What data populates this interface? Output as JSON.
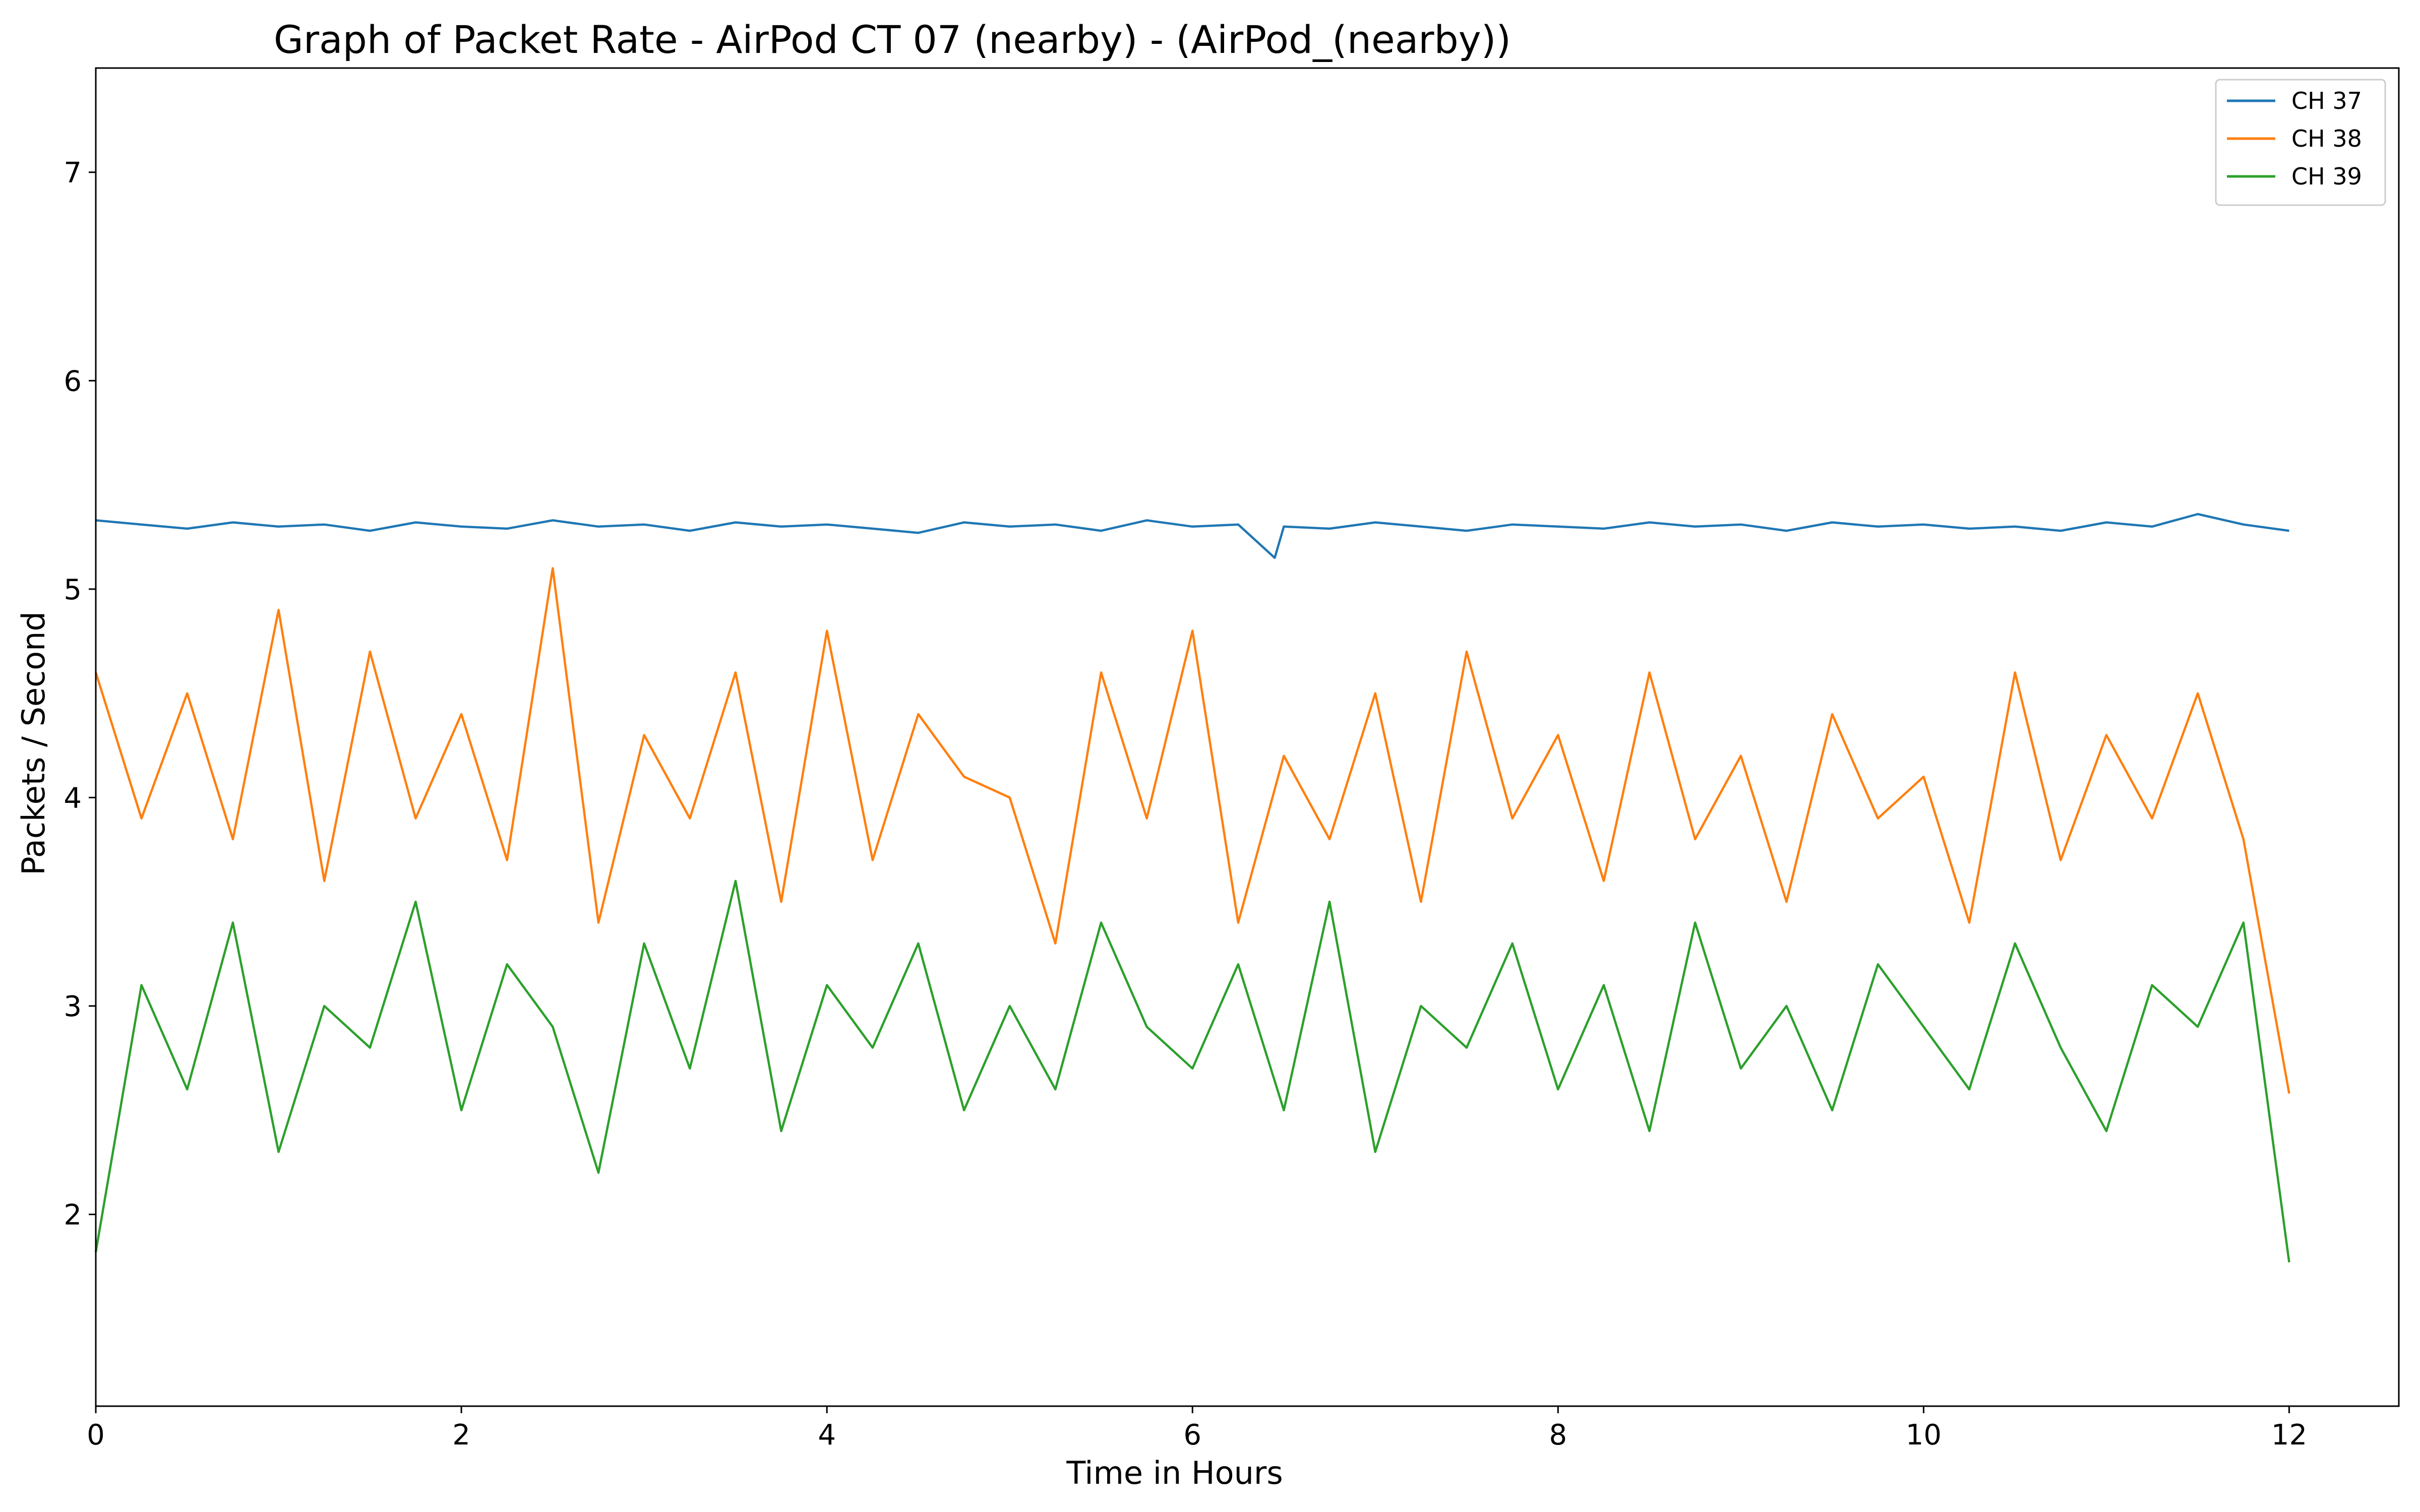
{
  "chart_data": {
    "type": "line",
    "title": "Graph of Packet Rate - AirPod CT 07 (nearby) - (AirPod_(nearby))",
    "xlabel": "Time in Hours",
    "ylabel": "Packets / Second",
    "xlim": [
      0,
      12.6
    ],
    "ylim": [
      1.08,
      7.5
    ],
    "xticks": [
      "0",
      "2",
      "4",
      "6",
      "8",
      "10",
      "12"
    ],
    "yticks": [
      "2",
      "3",
      "4",
      "5",
      "6",
      "7"
    ],
    "grid": false,
    "legend_position": "top-right",
    "series": [
      {
        "name": "CH 37",
        "color": "#1f77b4",
        "x": [
          0,
          0.25,
          0.5,
          0.75,
          1,
          1.25,
          1.5,
          1.75,
          2,
          2.25,
          2.5,
          2.75,
          3,
          3.25,
          3.5,
          3.75,
          4,
          4.25,
          4.5,
          4.75,
          5,
          5.25,
          5.5,
          5.75,
          6,
          6.25,
          6.45,
          6.5,
          6.75,
          7,
          7.25,
          7.5,
          7.75,
          8,
          8.25,
          8.5,
          8.75,
          9,
          9.25,
          9.5,
          9.75,
          10,
          10.25,
          10.5,
          10.75,
          11,
          11.25,
          11.5,
          11.75,
          12
        ],
        "y": [
          5.33,
          5.31,
          5.29,
          5.32,
          5.3,
          5.31,
          5.28,
          5.32,
          5.3,
          5.29,
          5.33,
          5.3,
          5.31,
          5.28,
          5.32,
          5.3,
          5.31,
          5.29,
          5.27,
          5.32,
          5.3,
          5.31,
          5.28,
          5.33,
          5.3,
          5.31,
          5.15,
          5.3,
          5.29,
          5.32,
          5.3,
          5.28,
          5.31,
          5.3,
          5.29,
          5.32,
          5.3,
          5.31,
          5.28,
          5.32,
          5.3,
          5.31,
          5.29,
          5.3,
          5.28,
          5.32,
          5.3,
          5.36,
          5.31,
          5.28
        ]
      },
      {
        "name": "CH 38",
        "color": "#ff7f0e",
        "x": [
          0,
          0.25,
          0.5,
          0.75,
          1,
          1.25,
          1.5,
          1.75,
          2,
          2.25,
          2.5,
          2.75,
          3,
          3.25,
          3.5,
          3.75,
          4,
          4.25,
          4.5,
          4.75,
          5,
          5.25,
          5.5,
          5.75,
          6,
          6.25,
          6.5,
          6.75,
          7,
          7.25,
          7.5,
          7.75,
          8,
          8.25,
          8.5,
          8.75,
          9,
          9.25,
          9.5,
          9.75,
          10,
          10.25,
          10.5,
          10.75,
          11,
          11.25,
          11.5,
          11.75,
          12
        ],
        "y": [
          4.6,
          3.9,
          4.5,
          3.8,
          4.9,
          3.6,
          4.7,
          3.9,
          4.4,
          3.7,
          5.1,
          3.4,
          4.3,
          3.9,
          4.6,
          3.5,
          4.8,
          3.7,
          4.4,
          4.1,
          4.0,
          3.3,
          4.6,
          3.9,
          4.8,
          3.4,
          4.2,
          3.8,
          4.5,
          3.5,
          4.7,
          3.9,
          4.3,
          3.6,
          4.6,
          3.8,
          4.2,
          3.5,
          4.4,
          3.9,
          4.1,
          3.4,
          4.6,
          3.7,
          4.3,
          3.9,
          4.5,
          3.8,
          2.58
        ]
      },
      {
        "name": "CH 39",
        "color": "#2ca02c",
        "x": [
          0,
          0.25,
          0.5,
          0.75,
          1,
          1.25,
          1.5,
          1.75,
          2,
          2.25,
          2.5,
          2.75,
          3,
          3.25,
          3.5,
          3.75,
          4,
          4.25,
          4.5,
          4.75,
          5,
          5.25,
          5.5,
          5.75,
          6,
          6.25,
          6.5,
          6.75,
          7,
          7.25,
          7.5,
          7.75,
          8,
          8.25,
          8.5,
          8.75,
          9,
          9.25,
          9.5,
          9.75,
          10,
          10.25,
          10.5,
          10.75,
          11,
          11.25,
          11.5,
          11.75,
          12
        ],
        "y": [
          1.82,
          3.1,
          2.6,
          3.4,
          2.3,
          3.0,
          2.8,
          3.5,
          2.5,
          3.2,
          2.9,
          2.2,
          3.3,
          2.7,
          3.6,
          2.4,
          3.1,
          2.8,
          3.3,
          2.5,
          3.0,
          2.6,
          3.4,
          2.9,
          2.7,
          3.2,
          2.5,
          3.5,
          2.3,
          3.0,
          2.8,
          3.3,
          2.6,
          3.1,
          2.4,
          3.4,
          2.7,
          3.0,
          2.5,
          3.2,
          2.9,
          2.6,
          3.3,
          2.8,
          2.4,
          3.1,
          2.9,
          3.4,
          1.77
        ]
      }
    ]
  }
}
